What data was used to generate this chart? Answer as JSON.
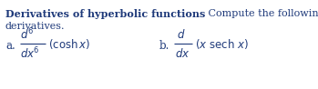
{
  "title_bold": "Derivatives of hyperbolic functions",
  "title_normal": " Compute the following",
  "line2": "derivatives.",
  "text_color": "#1f3a7a",
  "bg_color": "#ffffff",
  "fontsize": 8.0,
  "fontsize_math": 8.5,
  "fig_width": 3.49,
  "fig_height": 0.98
}
